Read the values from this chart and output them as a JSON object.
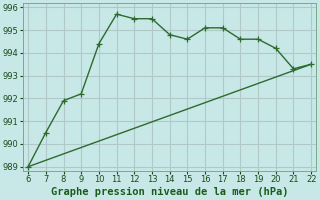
{
  "xlabel": "Graphe pression niveau de la mer (hPa)",
  "x": [
    6,
    7,
    8,
    9,
    10,
    11,
    12,
    13,
    14,
    15,
    16,
    17,
    18,
    19,
    20,
    21,
    22
  ],
  "y_curve": [
    989.0,
    990.5,
    991.9,
    992.2,
    994.4,
    995.7,
    995.5,
    995.5,
    994.8,
    994.6,
    995.1,
    995.1,
    994.6,
    994.6,
    994.2,
    993.3,
    993.5
  ],
  "line_color": "#2d6a2d",
  "bg_color": "#c8e8e8",
  "grid_color": "#b0c8c8",
  "ylim": [
    988.8,
    996.2
  ],
  "xlim": [
    5.7,
    22.3
  ],
  "yticks": [
    989,
    990,
    991,
    992,
    993,
    994,
    995,
    996
  ],
  "xticks": [
    6,
    7,
    8,
    9,
    10,
    11,
    12,
    13,
    14,
    15,
    16,
    17,
    18,
    19,
    20,
    21,
    22
  ],
  "xlabel_fontsize": 7.5,
  "tick_fontsize": 6,
  "line_width": 1.0,
  "marker_size": 4
}
